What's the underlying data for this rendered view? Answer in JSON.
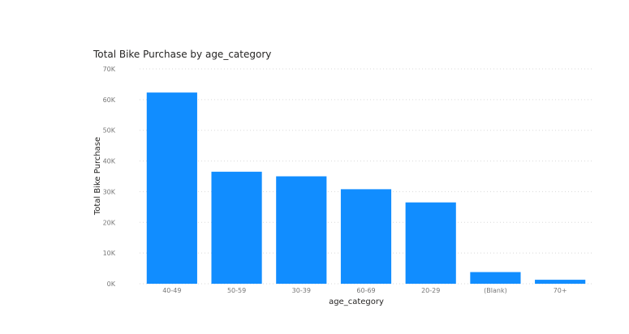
{
  "chart_data": {
    "type": "bar",
    "title": "Total Bike Purchase by age_category",
    "xlabel": "age_category",
    "ylabel": "Total Bike Purchase",
    "categories": [
      "40-49",
      "50-59",
      "30-39",
      "60-69",
      "20-29",
      "(Blank)",
      "70+"
    ],
    "values": [
      62300,
      36500,
      35000,
      30800,
      26500,
      3800,
      1300
    ],
    "ylim": [
      0,
      70000
    ],
    "yticks": [
      0,
      10000,
      20000,
      30000,
      40000,
      50000,
      60000,
      70000
    ],
    "ytick_labels": [
      "0K",
      "10K",
      "20K",
      "30K",
      "40K",
      "50K",
      "60K",
      "70K"
    ],
    "grid": true,
    "bar_color": "#118DFF",
    "legend": "none"
  }
}
